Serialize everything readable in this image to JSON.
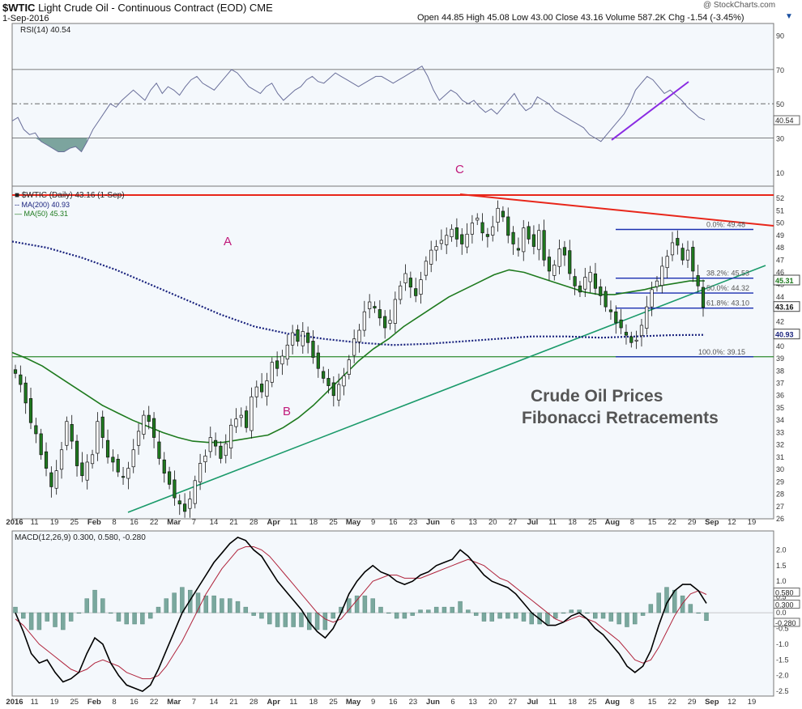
{
  "header": {
    "symbol": "$WTIC",
    "name": "Light Crude Oil - Continuous Contract (EOD)",
    "exchange": "CME",
    "date": "1-Sep-2016",
    "ohlc": "Open 44.85  High 45.08  Low 43.00  Close 43.16  Volume 587.2K  Chg -1.54 (-3.45%)",
    "watermark": "@ StockCharts.com",
    "arrow": "▼"
  },
  "rsi": {
    "label": "RSI(14) 40.54",
    "value_tag": "40.54",
    "ticks": [
      90,
      70,
      50,
      30,
      10
    ],
    "bands": [
      70,
      50,
      30
    ],
    "series": [
      22,
      20,
      18,
      15,
      14,
      12,
      11,
      13,
      12,
      14,
      15,
      22,
      25,
      35,
      38,
      36,
      32,
      37,
      40,
      38,
      34,
      41,
      46,
      40,
      38,
      42,
      45,
      48,
      44,
      43,
      47,
      50,
      55,
      52,
      54,
      58,
      60,
      63,
      62,
      60,
      64,
      66,
      63,
      67,
      66,
      64,
      60,
      62,
      58,
      55,
      57,
      54,
      50,
      47,
      44,
      46,
      52,
      55,
      57,
      54,
      56,
      58,
      60,
      62,
      59,
      61,
      63,
      67,
      66,
      64,
      62,
      64,
      66,
      65,
      63,
      60,
      58,
      56,
      60,
      62,
      58,
      55,
      52,
      50,
      54,
      56,
      55,
      52,
      50,
      48,
      47,
      45,
      44,
      42,
      40,
      38,
      36,
      35,
      34,
      33,
      36,
      40,
      44,
      48,
      52,
      55,
      58,
      60,
      62,
      63,
      64,
      65,
      66,
      64,
      62,
      60,
      58,
      55,
      52,
      48,
      45,
      42,
      40.54
    ],
    "series_full": [
      40,
      42,
      35,
      32,
      33,
      28,
      26,
      24,
      22,
      22,
      24,
      25,
      22,
      28,
      35,
      40,
      45,
      50,
      48,
      52,
      55,
      58,
      55,
      52,
      58,
      62,
      56,
      60,
      58,
      55,
      60,
      64,
      66,
      62,
      60,
      58,
      62,
      66,
      70,
      68,
      64,
      60,
      58,
      56,
      60,
      62,
      56,
      52,
      55,
      58,
      60,
      64,
      66,
      63,
      62,
      65,
      68,
      66,
      64,
      62,
      60,
      62,
      64,
      66,
      66,
      64,
      62,
      64,
      66,
      68,
      70,
      72,
      66,
      58,
      52,
      55,
      58,
      56,
      52,
      50,
      52,
      48,
      45,
      47,
      44,
      48,
      52,
      56,
      50,
      46,
      48,
      54,
      52,
      50,
      46,
      44,
      42,
      40,
      38,
      36,
      32,
      30,
      28,
      32,
      36,
      40,
      44,
      50,
      58,
      62,
      66,
      64,
      60,
      56,
      58,
      55,
      52,
      48,
      45,
      42,
      40.54
    ]
  },
  "price": {
    "legend": {
      "main": "$WTIC (Daily) 43.16 (1-Sep)",
      "ma200": "MA(200) 40.93",
      "ma50": "MA(50) 45.31"
    },
    "ylim": [
      26,
      52
    ],
    "ticks": [
      26,
      27,
      28,
      29,
      30,
      31,
      32,
      33,
      34,
      35,
      36,
      37,
      38,
      39,
      40,
      41,
      42,
      43,
      44,
      45,
      46,
      47,
      48,
      49,
      50,
      51,
      52
    ],
    "tags": {
      "ma50": "45.31",
      "close": "43.16",
      "ma200": "40.93"
    },
    "colors": {
      "ma50": "#1e7a1e",
      "ma200": "#1a237e",
      "up": "#ffffff",
      "down": "#1f7a1f",
      "resistance": "#e8261a",
      "support": "#1a9a6a",
      "fib": "#1a2fb0",
      "horizontal_support": "#2e8b2e",
      "rsi_trend": "#8a2be2"
    },
    "closes": [
      37.8,
      36.9,
      35.4,
      33.8,
      32.9,
      31.2,
      30.1,
      28.6,
      29.9,
      31.6,
      33.9,
      32.3,
      30.3,
      29.5,
      30.6,
      31.2,
      33.9,
      32.6,
      31.0,
      30.6,
      29.8,
      29.4,
      30.1,
      31.6,
      33.1,
      34.4,
      33.9,
      32.6,
      30.9,
      29.7,
      28.8,
      27.7,
      27.2,
      26.6,
      27.6,
      29.1,
      30.5,
      31.1,
      32.6,
      31.9,
      30.9,
      32.1,
      33.6,
      34.1,
      34.4,
      33.4,
      35.9,
      36.7,
      36.3,
      37.2,
      38.7,
      38.2,
      39.2,
      40.1,
      41.1,
      40.4,
      41.2,
      40.3,
      39.1,
      38.2,
      37.4,
      36.8,
      36.0,
      36.9,
      37.6,
      38.9,
      40.6,
      41.3,
      42.8,
      43.6,
      43.1,
      42.3,
      41.5,
      42.1,
      43.8,
      44.9,
      45.9,
      44.8,
      44.1,
      45.4,
      46.9,
      47.8,
      48.1,
      48.6,
      49.0,
      49.5,
      48.7,
      48.3,
      49.1,
      50.0,
      50.4,
      49.2,
      48.9,
      49.7,
      51.2,
      50.5,
      49.0,
      48.3,
      47.8,
      49.6,
      48.7,
      48.1,
      49.4,
      47.0,
      46.1,
      46.6,
      47.9,
      47.4,
      45.9,
      44.9,
      44.4,
      45.6,
      46.0,
      44.7,
      44.1,
      43.2,
      42.8,
      41.9,
      41.5,
      40.9,
      40.3,
      40.5,
      41.7,
      43.2,
      44.6,
      45.3,
      46.5,
      47.3,
      48.4,
      48.2,
      47.0,
      47.8,
      46.1,
      44.9,
      43.16
    ],
    "ma50": [
      39.5,
      39.0,
      38.4,
      37.6,
      36.8,
      36.0,
      35.2,
      34.6,
      34.0,
      33.5,
      33.0,
      32.6,
      32.3,
      32.2,
      32.2,
      32.4,
      32.6,
      32.8,
      33.4,
      34.2,
      35.2,
      36.4,
      37.6,
      38.8,
      39.8,
      40.6,
      41.6,
      42.4,
      43.2,
      44.0,
      44.6,
      45.2,
      45.8,
      46.2,
      46.0,
      45.6,
      45.2,
      44.8,
      44.4,
      44.2,
      44.2,
      44.4,
      44.6,
      44.9,
      45.1,
      45.3,
      45.31
    ],
    "ma200": [
      48.5,
      48.0,
      47.2,
      46.2,
      45.0,
      43.8,
      42.6,
      41.6,
      41.0,
      40.6,
      40.3,
      40.1,
      40.2,
      40.4,
      40.6,
      40.8,
      40.8,
      40.7,
      40.8,
      40.9,
      40.93
    ],
    "annotations": {
      "A": "A",
      "B": "B",
      "C": "C"
    },
    "title_line1": "Crude Oil Prices",
    "title_line2": "Fibonacci Retracements",
    "fib": [
      {
        "label": "0.0%: 49.48",
        "value": 49.48
      },
      {
        "label": "38.2%: 45.53",
        "value": 45.53
      },
      {
        "label": "50.0%: 44.32",
        "value": 44.32
      },
      {
        "label": "61.8%: 43.10",
        "value": 43.1
      },
      {
        "label": "100.0%: 39.15",
        "value": 39.15
      }
    ],
    "fib_visible_labels": [
      "0.0%: 49.48",
      "38.2%: 45.53",
      "50.0%: 44.32",
      "61.8%: 43.10",
      "100.0%: 39.15"
    ]
  },
  "macd": {
    "label": "MACD(12,26,9) 0.300, 0.580, -0.280",
    "ticks": [
      "2.0",
      "1.5",
      "1.0",
      "0.5",
      "0.0",
      "-0.5",
      "-1.0",
      "-1.5",
      "-2.0",
      "-2.5"
    ],
    "tick_values": [
      2.0,
      1.5,
      1.0,
      0.5,
      0.0,
      -0.5,
      -1.0,
      -1.5,
      -2.0,
      -2.5
    ],
    "tags": {
      "signal": "0.580",
      "macd": "0.300",
      "zero": "0.0",
      "hist": "-0.280"
    },
    "ylim": [
      -2.6,
      2.5
    ],
    "macd_line": [
      0.0,
      -0.6,
      -1.3,
      -1.6,
      -1.5,
      -1.9,
      -2.2,
      -2.1,
      -1.9,
      -1.3,
      -0.8,
      -1.0,
      -1.6,
      -2.0,
      -2.3,
      -2.4,
      -2.5,
      -2.3,
      -1.8,
      -1.2,
      -0.6,
      0.0,
      0.4,
      0.8,
      1.2,
      1.6,
      1.9,
      2.2,
      2.4,
      2.3,
      2.0,
      1.8,
      1.4,
      1.0,
      0.7,
      0.4,
      0.1,
      -0.3,
      -0.6,
      -0.8,
      -0.5,
      0.0,
      0.6,
      1.0,
      1.3,
      1.5,
      1.3,
      1.2,
      1.0,
      0.9,
      1.0,
      1.2,
      1.3,
      1.5,
      1.6,
      1.7,
      2.0,
      1.8,
      1.5,
      1.2,
      1.0,
      0.9,
      0.8,
      0.6,
      0.3,
      0.0,
      -0.2,
      -0.4,
      -0.4,
      -0.3,
      -0.1,
      0.0,
      -0.2,
      -0.5,
      -0.7,
      -1.0,
      -1.3,
      -1.7,
      -1.9,
      -1.7,
      -1.2,
      -0.4,
      0.3,
      0.7,
      0.9,
      0.9,
      0.7,
      0.3
    ],
    "signal_line": [
      -0.2,
      -0.4,
      -0.7,
      -1.0,
      -1.2,
      -1.4,
      -1.6,
      -1.8,
      -1.9,
      -1.8,
      -1.6,
      -1.5,
      -1.6,
      -1.7,
      -1.9,
      -2.0,
      -2.1,
      -2.1,
      -2.0,
      -1.7,
      -1.3,
      -0.9,
      -0.4,
      0.1,
      0.6,
      1.0,
      1.4,
      1.7,
      2.0,
      2.1,
      2.1,
      2.0,
      1.8,
      1.5,
      1.2,
      0.9,
      0.6,
      0.3,
      0.0,
      -0.2,
      -0.3,
      -0.2,
      0.1,
      0.4,
      0.7,
      1.0,
      1.1,
      1.2,
      1.2,
      1.1,
      1.1,
      1.1,
      1.2,
      1.3,
      1.4,
      1.5,
      1.6,
      1.7,
      1.6,
      1.5,
      1.3,
      1.1,
      1.0,
      0.8,
      0.6,
      0.4,
      0.2,
      0.0,
      -0.2,
      -0.3,
      -0.2,
      -0.1,
      -0.2,
      -0.3,
      -0.5,
      -0.7,
      -0.9,
      -1.2,
      -1.5,
      -1.6,
      -1.5,
      -1.1,
      -0.6,
      -0.1,
      0.3,
      0.6,
      0.7,
      0.58
    ]
  },
  "xaxis": {
    "labels": [
      "2016",
      "11",
      "19",
      "25",
      "Feb",
      "8",
      "16",
      "22",
      "Mar",
      "7",
      "14",
      "21",
      "28",
      "Apr",
      "11",
      "18",
      "25",
      "May",
      "9",
      "16",
      "23",
      "Jun",
      "6",
      "13",
      "20",
      "27",
      "Jul",
      "11",
      "18",
      "25",
      "Aug",
      "8",
      "15",
      "22",
      "29",
      "Sep",
      "12",
      "19"
    ],
    "bold": [
      "2016",
      "Feb",
      "Mar",
      "Apr",
      "May",
      "Jun",
      "Jul",
      "Aug",
      "Sep"
    ]
  }
}
